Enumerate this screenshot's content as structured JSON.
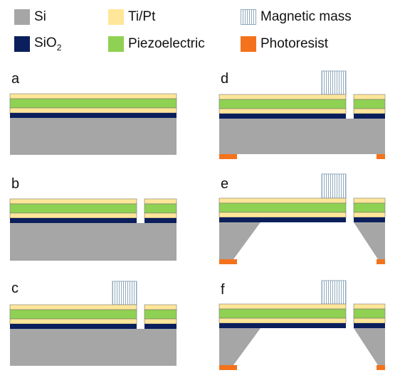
{
  "legend": {
    "items": [
      {
        "key": "si",
        "label": "Si",
        "color": "#a6a6a6"
      },
      {
        "key": "tipt",
        "label": "Ti/Pt",
        "color": "#ffe699"
      },
      {
        "key": "mass",
        "label": "Magnetic mass",
        "color": "#8fa9bd"
      },
      {
        "key": "sio2",
        "label": "SiO",
        "sub": "2",
        "color": "#0b1f5c"
      },
      {
        "key": "piezo",
        "label": "Piezoelectric",
        "color": "#8fd152"
      },
      {
        "key": "resist",
        "label": "Photoresist",
        "color": "#f4721b"
      }
    ]
  },
  "panels": [
    {
      "label": "a"
    },
    {
      "label": "b"
    },
    {
      "label": "c"
    },
    {
      "label": "d"
    },
    {
      "label": "e"
    },
    {
      "label": "f"
    }
  ]
}
